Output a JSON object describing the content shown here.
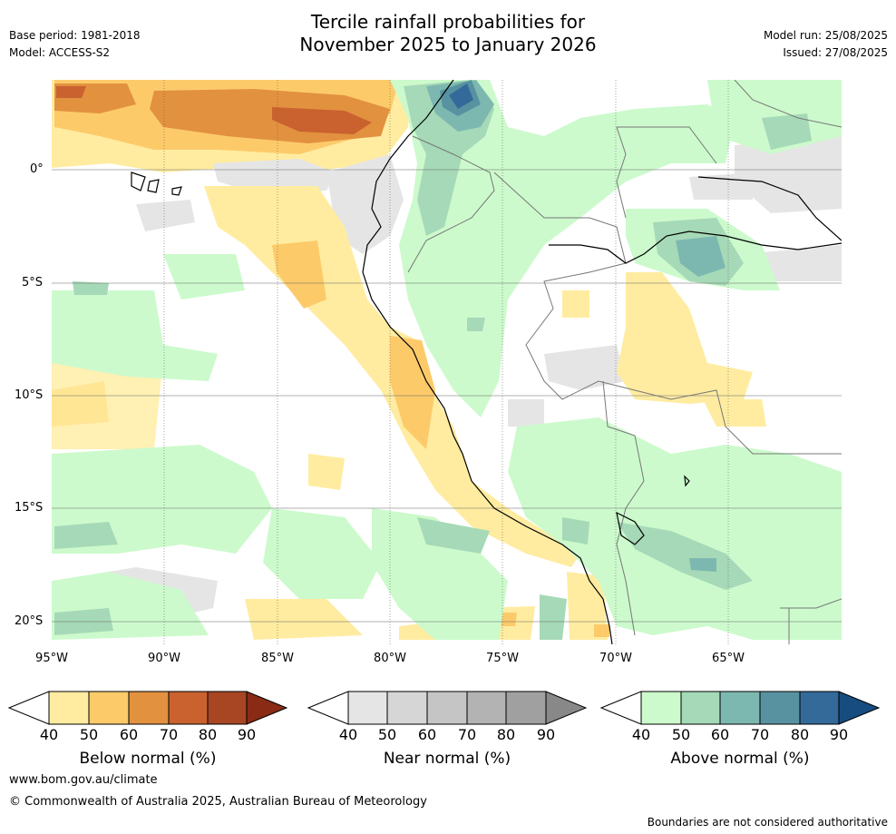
{
  "header": {
    "title_line1": "Tercile rainfall probabilities for",
    "title_line2": "November 2025 to January 2026",
    "base_period": "Base period: 1981-2018",
    "model": "Model: ACCESS-S2",
    "model_run": "Model run: 25/08/2025",
    "issued": "Issued: 27/08/2025"
  },
  "map": {
    "lat_labels": [
      "0°",
      "5°S",
      "10°S",
      "15°S",
      "20°S"
    ],
    "lon_labels": [
      "95°W",
      "90°W",
      "85°W",
      "80°W",
      "75°W",
      "70°W",
      "65°W"
    ]
  },
  "legends": {
    "below": {
      "label": "Below normal (%)",
      "ticks": [
        "40",
        "50",
        "60",
        "70",
        "80",
        "90"
      ],
      "colors": [
        "#ffeca0",
        "#fdca6a",
        "#e2913f",
        "#c9622f",
        "#a84624",
        "#8a2b16"
      ]
    },
    "near": {
      "label": "Near normal (%)",
      "ticks": [
        "40",
        "50",
        "60",
        "70",
        "80",
        "90"
      ],
      "colors": [
        "#e5e5e5",
        "#d6d6d6",
        "#c5c5c5",
        "#b3b3b3",
        "#a0a0a0",
        "#888888"
      ]
    },
    "above": {
      "label": "Above normal (%)",
      "ticks": [
        "40",
        "50",
        "60",
        "70",
        "80",
        "90"
      ],
      "colors": [
        "#ccfacc",
        "#a6d9b7",
        "#7db8b0",
        "#5892a1",
        "#336a9a",
        "#174c80"
      ]
    }
  },
  "footer": {
    "url": "www.bom.gov.au/climate",
    "copyright": "© Commonwealth of Australia 2025, Australian Bureau of Meteorology",
    "disclaimer": "Boundaries are not considered authoritative"
  }
}
